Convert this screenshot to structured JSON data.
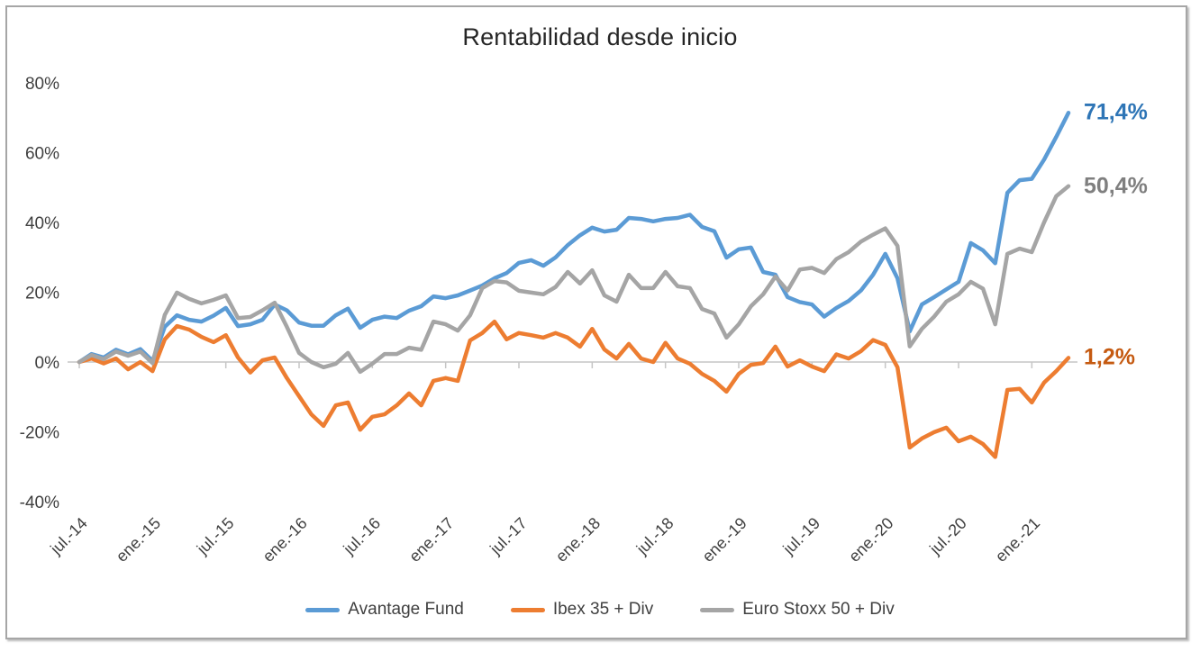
{
  "title": "Rentabilidad desde inicio",
  "colors": {
    "avantage": "#5B9BD5",
    "ibex": "#ED7D31",
    "eurostoxx": "#A5A5A5",
    "axis_text": "#404040",
    "zero_line": "#C6C6C6",
    "title_text": "#262626",
    "end_label_avantage": "#2E75B6",
    "end_label_ibex": "#C55A11",
    "end_label_eurostoxx": "#7F7F7F"
  },
  "chart_data": {
    "type": "line",
    "title": "Rentabilidad desde inicio",
    "xlabel": "",
    "ylabel": "",
    "ylim": [
      -40,
      80
    ],
    "y_ticks": [
      80,
      60,
      40,
      20,
      0,
      -20,
      -40
    ],
    "y_tick_labels": [
      "80%",
      "60%",
      "40%",
      "20%",
      "0%",
      "-20%",
      "-40%"
    ],
    "x_tick_every": 6,
    "x_tick_labels": [
      "jul.-14",
      "ene.-15",
      "jul.-15",
      "ene.-16",
      "jul.-16",
      "ene.-17",
      "jul.-17",
      "ene.-18",
      "jul.-18",
      "ene.-19",
      "jul.-19",
      "ene.-20",
      "jul.-20",
      "ene.-21"
    ],
    "grid": "zero-axis-line-only",
    "legend_position": "bottom",
    "categories": [
      "jul.-14",
      "ago.-14",
      "sep.-14",
      "oct.-14",
      "nov.-14",
      "dic.-14",
      "ene.-15",
      "feb.-15",
      "mar.-15",
      "abr.-15",
      "may.-15",
      "jun.-15",
      "jul.-15",
      "ago.-15",
      "sep.-15",
      "oct.-15",
      "nov.-15",
      "dic.-15",
      "ene.-16",
      "feb.-16",
      "mar.-16",
      "abr.-16",
      "may.-16",
      "jun.-16",
      "jul.-16",
      "ago.-16",
      "sep.-16",
      "oct.-16",
      "nov.-16",
      "dic.-16",
      "ene.-17",
      "feb.-17",
      "mar.-17",
      "abr.-17",
      "may.-17",
      "jun.-17",
      "jul.-17",
      "ago.-17",
      "sep.-17",
      "oct.-17",
      "nov.-17",
      "dic.-17",
      "ene.-18",
      "feb.-18",
      "mar.-18",
      "abr.-18",
      "may.-18",
      "jun.-18",
      "jul.-18",
      "ago.-18",
      "sep.-18",
      "oct.-18",
      "nov.-18",
      "dic.-18",
      "ene.-19",
      "feb.-19",
      "mar.-19",
      "abr.-19",
      "may.-19",
      "jun.-19",
      "jul.-19",
      "ago.-19",
      "sep.-19",
      "oct.-19",
      "nov.-19",
      "dic.-19",
      "ene.-20",
      "feb.-20",
      "mar.-20",
      "abr.-20",
      "may.-20",
      "jun.-20",
      "jul.-20",
      "ago.-20",
      "sep.-20",
      "oct.-20",
      "nov.-20",
      "dic.-20",
      "ene.-21",
      "feb.-21",
      "mar.-21",
      "abr.-21"
    ],
    "series": [
      {
        "name": "Avantage Fund",
        "key": "avantage",
        "color": "#5B9BD5",
        "end_label": "71,4%",
        "end_value": 71.4,
        "values": [
          0,
          2.3,
          1.3,
          3.5,
          2.2,
          3.7,
          0.3,
          10.1,
          13.4,
          12.1,
          11.6,
          13.3,
          15.5,
          10.3,
          10.8,
          12.1,
          16.5,
          14.8,
          11.3,
          10.4,
          10.4,
          13.4,
          15.3,
          9.8,
          12.1,
          13,
          12.6,
          14.7,
          16,
          18.8,
          18.3,
          19.1,
          20.5,
          21.9,
          24,
          25.5,
          28.4,
          29.2,
          27.6,
          30,
          33.5,
          36.3,
          38.5,
          37.4,
          37.9,
          41.3,
          41,
          40.3,
          41,
          41.3,
          42.2,
          38.7,
          37.5,
          29.9,
          32.3,
          32.8,
          25.8,
          25,
          18.6,
          17.2,
          16.5,
          13,
          15.5,
          17.5,
          20.5,
          25,
          31,
          24,
          8.8,
          16.5,
          18.6,
          20.8,
          23,
          34.1,
          32,
          28.3,
          48.5,
          52.1,
          52.5,
          58,
          64.5,
          71.4
        ]
      },
      {
        "name": "Ibex 35 + Div",
        "key": "ibex",
        "color": "#ED7D31",
        "end_label": "1,2%",
        "end_value": 1.2,
        "values": [
          0,
          1,
          -0.4,
          1,
          -2.1,
          0,
          -2.6,
          6.5,
          10.3,
          9.3,
          7.2,
          5.7,
          7.7,
          1.3,
          -3,
          0.5,
          1.3,
          -4.6,
          -9.8,
          -15,
          -18.3,
          -12.4,
          -11.6,
          -19.4,
          -15.7,
          -15,
          -12.4,
          -9,
          -12.4,
          -5.4,
          -4.6,
          -5.4,
          6.2,
          8.3,
          11.6,
          6.5,
          8.3,
          7.7,
          7,
          8.3,
          7,
          4.4,
          9.5,
          3.6,
          1,
          5.2,
          1,
          0,
          5.5,
          1,
          -0.5,
          -3.4,
          -5.4,
          -8.5,
          -3.4,
          -0.8,
          -0.3,
          4.4,
          -1.3,
          0.5,
          -1.3,
          -2.6,
          2.2,
          1,
          3.1,
          6.3,
          4.9,
          -1.5,
          -24.5,
          -21.9,
          -20.1,
          -18.8,
          -22.7,
          -21.4,
          -23.5,
          -27.2,
          -8,
          -7.7,
          -11.6,
          -5.9,
          -2.6,
          1.2
        ]
      },
      {
        "name": "Euro Stoxx 50 + Div",
        "key": "eurostoxx",
        "color": "#A5A5A5",
        "end_label": "50,4%",
        "end_value": 50.4,
        "values": [
          0,
          2,
          0.8,
          3,
          1.8,
          3,
          -0.3,
          13.5,
          19.9,
          18.1,
          16.8,
          17.8,
          19.1,
          12.6,
          12.9,
          14.8,
          17,
          10.1,
          2.6,
          0,
          -1.5,
          -0.5,
          2.6,
          -2.8,
          -0.5,
          2.3,
          2.3,
          4.1,
          3.5,
          11.6,
          10.8,
          9,
          13.4,
          21.2,
          23.2,
          22.8,
          20.4,
          19.9,
          19.4,
          21.5,
          25.8,
          22.5,
          26.3,
          19.1,
          17.3,
          25,
          21.2,
          21.2,
          25.8,
          21.7,
          21.2,
          15.2,
          13.9,
          7,
          10.8,
          16,
          19.4,
          24.5,
          20.5,
          26.5,
          27,
          25.5,
          29.5,
          31.5,
          34.5,
          36.5,
          38.3,
          33.3,
          4.5,
          9.5,
          13,
          17.3,
          19.4,
          23,
          21,
          10.8,
          31,
          32.5,
          31.5,
          40,
          47.5,
          50.4
        ]
      }
    ]
  },
  "legend": {
    "items": [
      {
        "label": "Avantage Fund",
        "key": "avantage"
      },
      {
        "label": "Ibex 35 + Div",
        "key": "ibex"
      },
      {
        "label": "Euro Stoxx 50 + Div",
        "key": "eurostoxx"
      }
    ]
  }
}
